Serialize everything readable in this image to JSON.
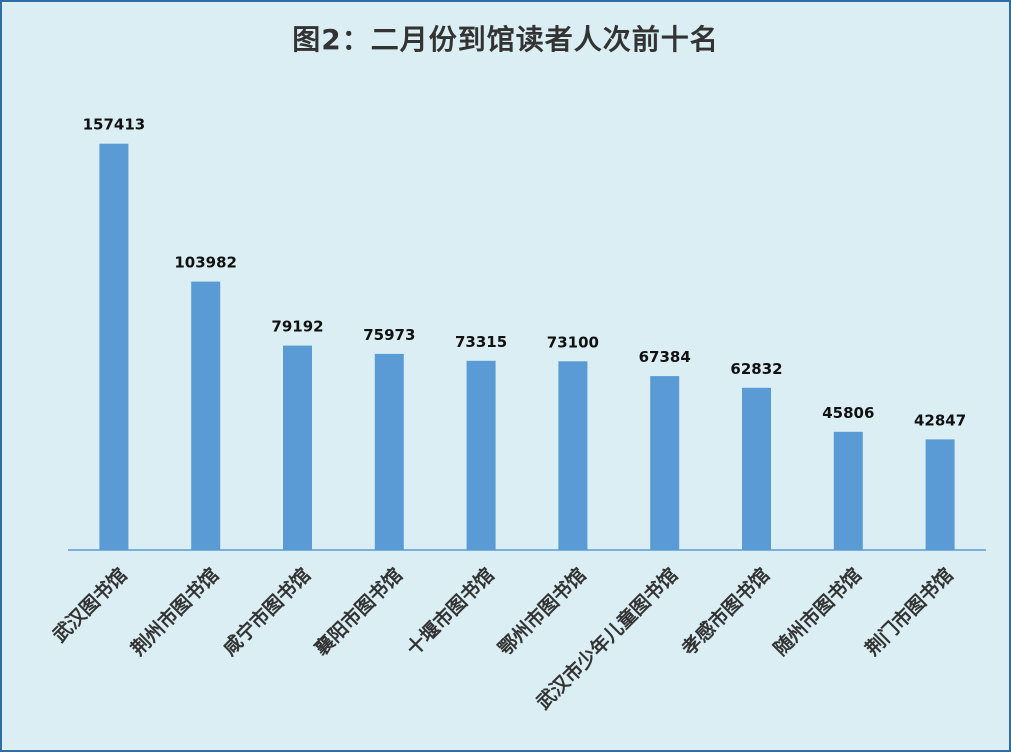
{
  "chart_data": {
    "type": "bar",
    "title": "图2：二月份到馆读者人次前十名",
    "categories": [
      "武汉图书馆",
      "荆州市图书馆",
      "咸宁市图书馆",
      "襄阳市图书馆",
      "十堰市图书馆",
      "鄂州市图书馆",
      "武汉市少年儿童图书馆",
      "孝感市图书馆",
      "随州市图书馆",
      "荆门市图书馆"
    ],
    "values": [
      157413,
      103982,
      79192,
      75973,
      73315,
      73100,
      67384,
      62832,
      45806,
      42847
    ],
    "xlabel": "",
    "ylabel": "",
    "ylim": [
      0,
      160000
    ],
    "grid": false,
    "legend": "none",
    "colors": {
      "bar": "#5b9bd5",
      "axis": "#5b9bd5",
      "background": "#daeef3",
      "border": "#2e6ea3"
    }
  }
}
